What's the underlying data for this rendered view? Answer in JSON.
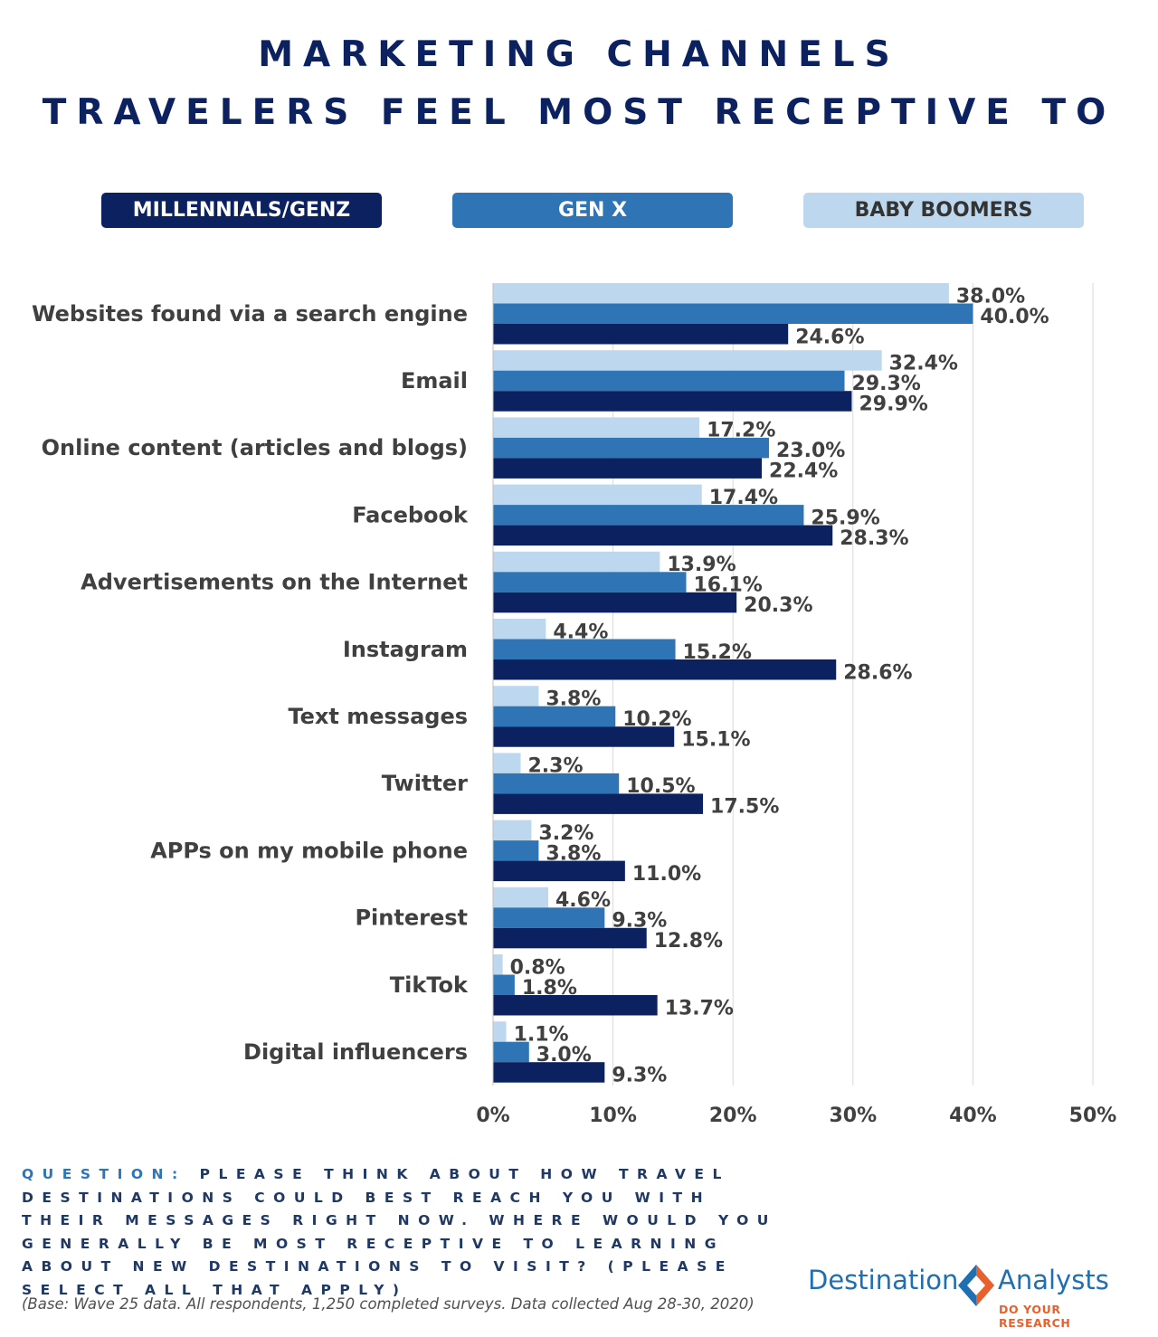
{
  "title": {
    "line1": "MARKETING CHANNELS",
    "line2": "TRAVELERS FEEL MOST RECEPTIVE TO"
  },
  "legend": {
    "millennials": "MILLENNIALS/GENZ",
    "genx": "GEN X",
    "boomers": "BABY BOOMERS"
  },
  "colors": {
    "millennials": "#0c2260",
    "genx": "#2f75b5",
    "boomers": "#bdd7ee",
    "title": "#0c2260",
    "question": "#1f3864",
    "logo_blue": "#1f6fb2",
    "logo_orange": "#e8602c"
  },
  "chart_data": {
    "type": "bar",
    "orientation": "horizontal",
    "categories": [
      "Websites found via a search engine",
      "Email",
      "Online content (articles and blogs)",
      "Facebook",
      "Advertisements on the Internet",
      "Instagram",
      "Text messages",
      "Twitter",
      "APPs on my mobile phone",
      "Pinterest",
      "TikTok",
      "Digital influencers"
    ],
    "series": [
      {
        "name": "BABY BOOMERS",
        "values": [
          38.0,
          32.4,
          17.2,
          17.4,
          13.9,
          4.4,
          3.8,
          2.3,
          3.2,
          4.6,
          0.8,
          1.1
        ]
      },
      {
        "name": "GEN X",
        "values": [
          40.0,
          29.3,
          23.0,
          25.9,
          16.1,
          15.2,
          10.2,
          10.5,
          3.8,
          9.3,
          1.8,
          3.0
        ]
      },
      {
        "name": "MILLENNIALS/GENZ",
        "values": [
          24.6,
          29.9,
          22.4,
          28.3,
          20.3,
          28.6,
          15.1,
          17.5,
          11.0,
          12.8,
          13.7,
          9.3
        ]
      }
    ],
    "xlim": [
      0,
      50
    ],
    "xticks": [
      "0%",
      "10%",
      "20%",
      "30%",
      "40%",
      "50%"
    ],
    "value_suffix": "%",
    "grid": true,
    "legend_position": "top"
  },
  "question": {
    "prefix": "QUESTION:",
    "text": "PLEASE THINK ABOUT HOW TRAVEL DESTINATIONS COULD BEST REACH YOU WITH THEIR MESSAGES RIGHT NOW.  WHERE WOULD YOU GENERALLY BE MOST RECEPTIVE TO LEARNING ABOUT NEW DESTINATIONS TO VISIT? (PLEASE SELECT ALL THAT APPLY)"
  },
  "base_note": "(Base: Wave 25 data. All respondents, 1,250 completed surveys. Data collected Aug 28-30, 2020)",
  "logo": {
    "word1": "Destination",
    "word2": "Analysts",
    "tagline": "DO YOUR RESEARCH"
  }
}
